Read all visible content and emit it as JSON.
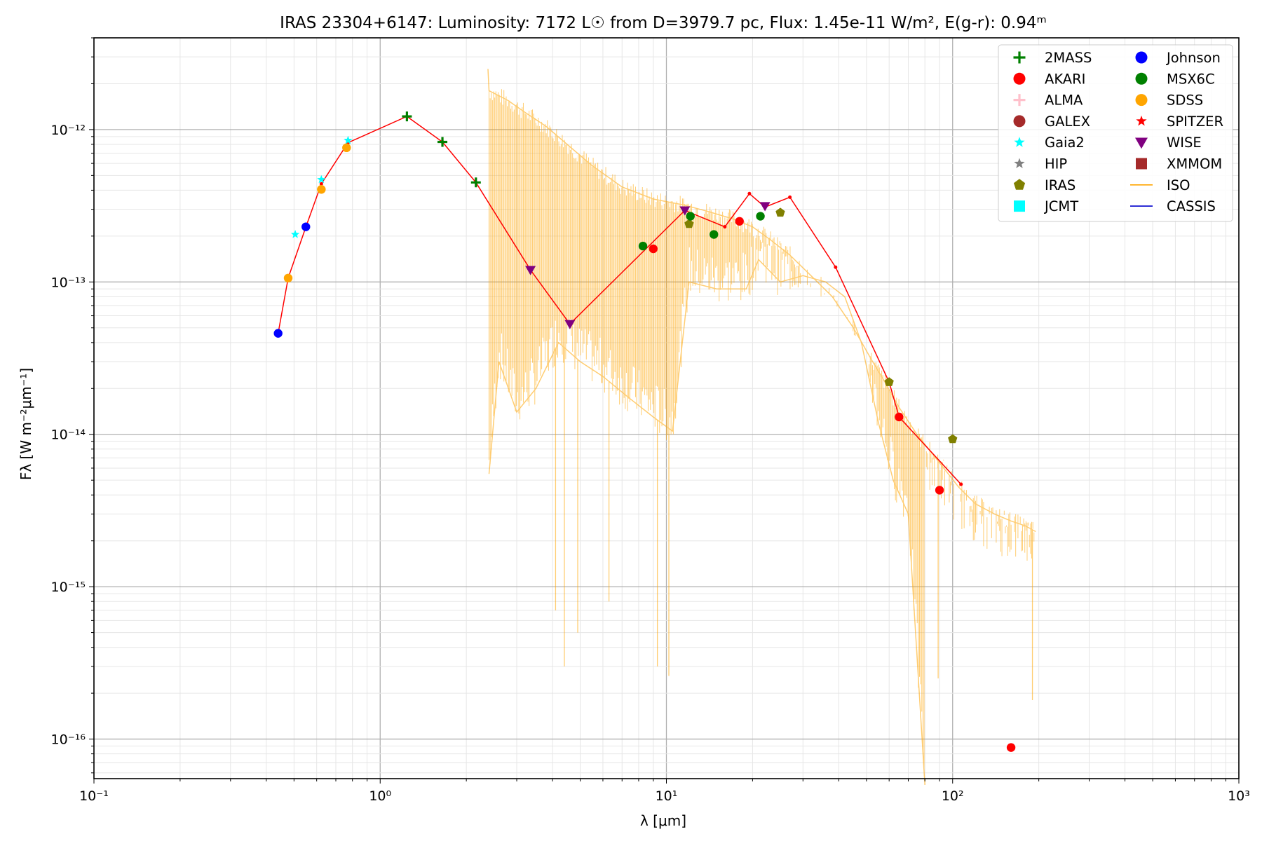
{
  "chart_data": {
    "type": "scatter",
    "title": "IRAS 23304+6147:  Luminosity: 7172 L☉ from D=3979.7 pc, Flux: 1.45e-11 W/m², E(g-r): 0.94ᵐ",
    "xlabel": "λ [μm]",
    "ylabel": "Fλ [W m⁻²μm⁻¹]",
    "xscale": "log",
    "yscale": "log",
    "xlim": [
      0.1,
      1000
    ],
    "ylim": [
      5.5e-17,
      4e-12
    ],
    "x_ticks": [
      {
        "value": 0.1,
        "label": "10⁻¹"
      },
      {
        "value": 1,
        "label": "10⁰"
      },
      {
        "value": 10,
        "label": "10¹"
      },
      {
        "value": 100,
        "label": "10²"
      },
      {
        "value": 1000,
        "label": "10³"
      }
    ],
    "y_ticks": [
      {
        "value": 1e-16,
        "label": "10⁻¹⁶"
      },
      {
        "value": 1e-15,
        "label": "10⁻¹⁵"
      },
      {
        "value": 1e-14,
        "label": "10⁻¹⁴"
      },
      {
        "value": 1e-13,
        "label": "10⁻¹³"
      },
      {
        "value": 1e-12,
        "label": "10⁻¹²"
      }
    ],
    "grid": true,
    "legend_position": "top-right",
    "series": [
      {
        "name": "2MASS",
        "marker": "plus",
        "color": "#008000",
        "x": [
          1.24,
          1.65,
          2.16
        ],
        "y": [
          1.22e-12,
          8.3e-13,
          4.5e-13
        ]
      },
      {
        "name": "AKARI",
        "marker": "circle",
        "color": "#ff0000",
        "x": [
          9.0,
          18.0,
          65.0,
          90.0,
          160.0
        ],
        "y": [
          1.65e-13,
          2.5e-13,
          1.3e-14,
          4.3e-15,
          8.8e-17
        ]
      },
      {
        "name": "ALMA",
        "marker": "plus",
        "color": "#ffc0cb",
        "x": [],
        "y": []
      },
      {
        "name": "GALEX",
        "marker": "circle",
        "color": "#a52a2a",
        "x": [],
        "y": []
      },
      {
        "name": "Gaia2",
        "marker": "star",
        "color": "#00ffff",
        "x": [
          0.505,
          0.623,
          0.772
        ],
        "y": [
          2.05e-13,
          4.7e-13,
          8.5e-13
        ]
      },
      {
        "name": "HIP",
        "marker": "star",
        "color": "#808080",
        "x": [],
        "y": []
      },
      {
        "name": "IRAS",
        "marker": "pentagon",
        "color": "#808000",
        "x": [
          12.0,
          25.0,
          60.0,
          100.0
        ],
        "y": [
          2.4e-13,
          2.85e-13,
          2.2e-14,
          9.3e-15
        ]
      },
      {
        "name": "JCMT",
        "marker": "square",
        "color": "#00ffff",
        "x": [],
        "y": []
      },
      {
        "name": "Johnson",
        "marker": "circle",
        "color": "#0000ff",
        "x": [
          0.44,
          0.55
        ],
        "y": [
          4.6e-14,
          2.3e-13
        ]
      },
      {
        "name": "MSX6C",
        "marker": "circle",
        "color": "#008000",
        "x": [
          8.28,
          12.13,
          14.65,
          21.3
        ],
        "y": [
          1.72e-13,
          2.7e-13,
          2.05e-13,
          2.7e-13
        ]
      },
      {
        "name": "SDSS",
        "marker": "circle",
        "color": "#ffa500",
        "x": [
          0.477,
          0.623,
          0.763
        ],
        "y": [
          1.06e-13,
          4.05e-13,
          7.6e-13
        ]
      },
      {
        "name": "SPITZER",
        "marker": "star",
        "color": "#ff0000",
        "x": [],
        "y": []
      },
      {
        "name": "WISE",
        "marker": "triangle-down",
        "color": "#800080",
        "x": [
          3.35,
          4.6,
          11.6,
          22.1
        ],
        "y": [
          1.2e-13,
          5.3e-14,
          2.95e-13,
          3.15e-13
        ]
      },
      {
        "name": "XMMOM",
        "marker": "square",
        "color": "#a52a2a",
        "x": [],
        "y": []
      },
      {
        "name": "ISO",
        "marker": "line",
        "color": "#ffa500"
      },
      {
        "name": "CASSIS",
        "marker": "line",
        "color": "#0000cc"
      }
    ],
    "sed_model_line": {
      "color": "#ff0000",
      "x": [
        0.44,
        0.477,
        0.55,
        0.623,
        0.772,
        1.24,
        1.65,
        2.16,
        3.35,
        4.6,
        11.6,
        16.0,
        19.5,
        22.1,
        27.0,
        39.0,
        60.0,
        65.0,
        107.0
      ],
      "y": [
        4.6e-14,
        1.06e-13,
        2.3e-13,
        4.4e-13,
        8.2e-13,
        1.22e-12,
        8.3e-13,
        4.5e-13,
        1.2e-13,
        5.3e-14,
        2.95e-13,
        2.3e-13,
        3.8e-13,
        3.1e-13,
        3.6e-13,
        1.25e-13,
        2.2e-14,
        1.3e-14,
        4.7e-15
      ]
    },
    "iso_spectrum": {
      "color": "#ffa500",
      "upper_envelope": {
        "x": [
          2.38,
          2.4,
          2.8,
          3.2,
          3.8,
          4.5,
          5.5,
          7.0,
          9.0,
          11.5,
          14.0,
          17.0,
          20.0,
          23.0,
          27.0,
          32.0,
          38.0,
          45.0,
          52.0,
          58.0,
          65.0,
          75.0,
          90.0,
          105.0,
          120.0,
          140.0,
          160.0,
          180.0,
          195.0
        ],
        "y": [
          2.5e-12,
          1.8e-12,
          1.55e-12,
          1.3e-12,
          1.05e-12,
          8e-13,
          5.8e-13,
          4.2e-13,
          3.5e-13,
          3.2e-13,
          2.9e-13,
          2.6e-13,
          2.3e-13,
          1.9e-13,
          1.5e-13,
          1.1e-13,
          8e-14,
          5e-14,
          3.1e-14,
          2.2e-14,
          1.5e-14,
          1e-14,
          6.5e-15,
          4.5e-15,
          3.5e-15,
          3e-15,
          2.7e-15,
          2.5e-15,
          2.3e-15
        ]
      },
      "lower_envelope": {
        "x": [
          2.4,
          2.6,
          3.0,
          3.5,
          4.2,
          5.0,
          6.0,
          7.5,
          9.0,
          10.5,
          12.0,
          15.0,
          19.0,
          21.0,
          25.0,
          30.0,
          36.0,
          42.0,
          48.0,
          55.0,
          62.0,
          70.0,
          80.0
        ],
        "y": [
          5.5e-15,
          3e-14,
          1.4e-14,
          2e-14,
          4e-14,
          3e-14,
          2.4e-14,
          1.7e-14,
          1.3e-14,
          1.05e-14,
          1e-13,
          9e-14,
          9e-14,
          1.4e-13,
          1e-13,
          1.1e-13,
          1e-13,
          8e-14,
          4e-14,
          1.2e-14,
          5e-15,
          3e-15,
          5e-17
        ]
      },
      "absorption_dips": [
        {
          "x": 4.1,
          "y": 7e-16
        },
        {
          "x": 4.4,
          "y": 3e-16
        },
        {
          "x": 4.9,
          "y": 5e-16
        },
        {
          "x": 6.3,
          "y": 8e-16
        },
        {
          "x": 9.3,
          "y": 3e-16
        },
        {
          "x": 10.2,
          "y": 2.6e-16
        },
        {
          "x": 80.0,
          "y": 5.5e-17
        },
        {
          "x": 89.0,
          "y": 2.5e-16
        },
        {
          "x": 190.0,
          "y": 1.8e-16
        }
      ]
    }
  }
}
